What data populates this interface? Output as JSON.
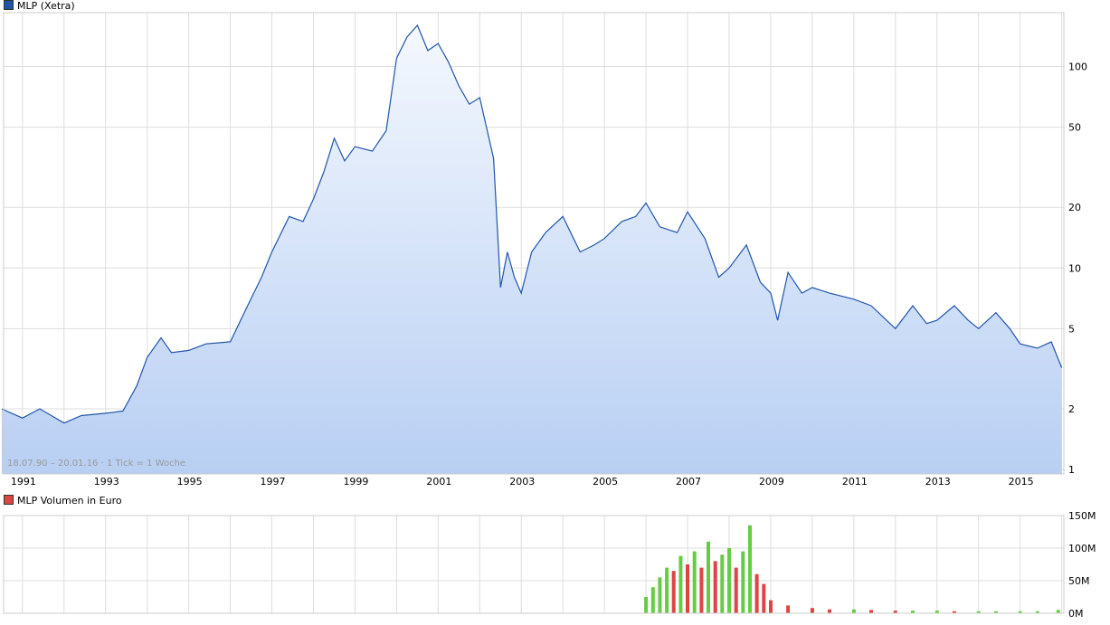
{
  "legend_price": "MLP (Xetra)",
  "legend_volume": "MLP Volumen in Euro",
  "range_note": "18.07.90 – 20.01.16 · 1 Tick = 1 Woche",
  "colors": {
    "price_line": "#2255aa",
    "price_fill_top": "#f4f8fe",
    "price_fill_bottom": "#b8cff3",
    "volume_up": "#66cc44",
    "volume_down": "#dd4444",
    "grid": "#dddddd"
  },
  "chart_data": [
    {
      "type": "area",
      "title": "MLP (Xetra)",
      "xlabel": "",
      "ylabel": "",
      "y_scale": "log",
      "grid": true,
      "legend_position": "top-left",
      "x_range": [
        "1990-07-18",
        "2016-01-20"
      ],
      "ylim": [
        0.95,
        185
      ],
      "x_ticks": [
        "1991",
        "1993",
        "1995",
        "1997",
        "1999",
        "2001",
        "2003",
        "2005",
        "2007",
        "2009",
        "2011",
        "2013",
        "2015"
      ],
      "y_ticks": [
        1,
        2,
        5,
        10,
        20,
        50,
        100
      ],
      "series": [
        {
          "name": "MLP (Xetra)",
          "x": [
            "1990-07",
            "1991-01",
            "1991-06",
            "1992-01",
            "1992-06",
            "1993-01",
            "1993-06",
            "1993-10",
            "1994-01",
            "1994-05",
            "1994-08",
            "1995-01",
            "1995-06",
            "1996-01",
            "1996-06",
            "1996-10",
            "1997-01",
            "1997-06",
            "1997-10",
            "1998-01",
            "1998-04",
            "1998-07",
            "1998-10",
            "1999-01",
            "1999-06",
            "1999-10",
            "2000-01",
            "2000-04",
            "2000-07",
            "2000-10",
            "2001-01",
            "2001-04",
            "2001-07",
            "2001-10",
            "2002-01",
            "2002-05",
            "2002-07",
            "2002-09",
            "2002-11",
            "2003-01",
            "2003-04",
            "2003-08",
            "2004-01",
            "2004-06",
            "2004-10",
            "2005-01",
            "2005-06",
            "2005-10",
            "2006-01",
            "2006-05",
            "2006-10",
            "2007-01",
            "2007-06",
            "2007-10",
            "2008-01",
            "2008-06",
            "2008-10",
            "2009-01",
            "2009-03",
            "2009-06",
            "2009-10",
            "2010-01",
            "2010-06",
            "2011-01",
            "2011-06",
            "2012-01",
            "2012-06",
            "2012-10",
            "2013-01",
            "2013-06",
            "2013-10",
            "2014-01",
            "2014-06",
            "2014-10",
            "2015-01",
            "2015-06",
            "2015-10",
            "2016-01"
          ],
          "values": [
            2.0,
            1.8,
            2.0,
            1.7,
            1.85,
            1.9,
            1.95,
            2.6,
            3.6,
            4.5,
            3.8,
            3.9,
            4.2,
            4.3,
            6.5,
            9.0,
            12.0,
            18.0,
            17.0,
            22.0,
            30.0,
            44.0,
            34.0,
            40.0,
            38.0,
            48.0,
            110.0,
            140.0,
            160.0,
            120.0,
            130.0,
            105.0,
            80.0,
            65.0,
            70.0,
            35.0,
            8.0,
            12.0,
            9.0,
            7.5,
            12.0,
            15.0,
            18.0,
            12.0,
            13.0,
            14.0,
            17.0,
            18.0,
            21.0,
            16.0,
            15.0,
            19.0,
            14.0,
            9.0,
            10.0,
            13.0,
            8.5,
            7.5,
            5.5,
            9.5,
            7.5,
            8.0,
            7.5,
            7.0,
            6.5,
            5.0,
            6.5,
            5.3,
            5.5,
            6.5,
            5.5,
            5.0,
            6.0,
            5.0,
            4.2,
            4.0,
            4.3,
            3.2
          ]
        }
      ]
    },
    {
      "type": "bar",
      "title": "MLP Volumen in Euro",
      "xlabel": "",
      "ylabel": "",
      "grid": true,
      "x_range": [
        "1990-07-18",
        "2016-01-20"
      ],
      "ylim": [
        0,
        150
      ],
      "y_ticks": [
        "0M",
        "50M",
        "100M",
        "150M"
      ],
      "y_tick_values": [
        0,
        50,
        100,
        150
      ],
      "series": [
        {
          "name": "MLP Volumen in Euro",
          "x": [
            "2006-01",
            "2006-03",
            "2006-05",
            "2006-07",
            "2006-09",
            "2006-11",
            "2007-01",
            "2007-03",
            "2007-05",
            "2007-07",
            "2007-09",
            "2007-11",
            "2008-01",
            "2008-03",
            "2008-05",
            "2008-07",
            "2008-09",
            "2008-11",
            "2009-01",
            "2009-06",
            "2010-01",
            "2010-06",
            "2011-01",
            "2011-06",
            "2012-01",
            "2012-06",
            "2013-01",
            "2013-06",
            "2014-01",
            "2014-06",
            "2015-01",
            "2015-06",
            "2015-12"
          ],
          "values": [
            25,
            40,
            55,
            70,
            65,
            88,
            75,
            95,
            70,
            110,
            80,
            90,
            100,
            70,
            95,
            135,
            60,
            45,
            20,
            12,
            8,
            6,
            6,
            5,
            4,
            4,
            4,
            3,
            3,
            3,
            3,
            3,
            5
          ]
        }
      ]
    }
  ]
}
